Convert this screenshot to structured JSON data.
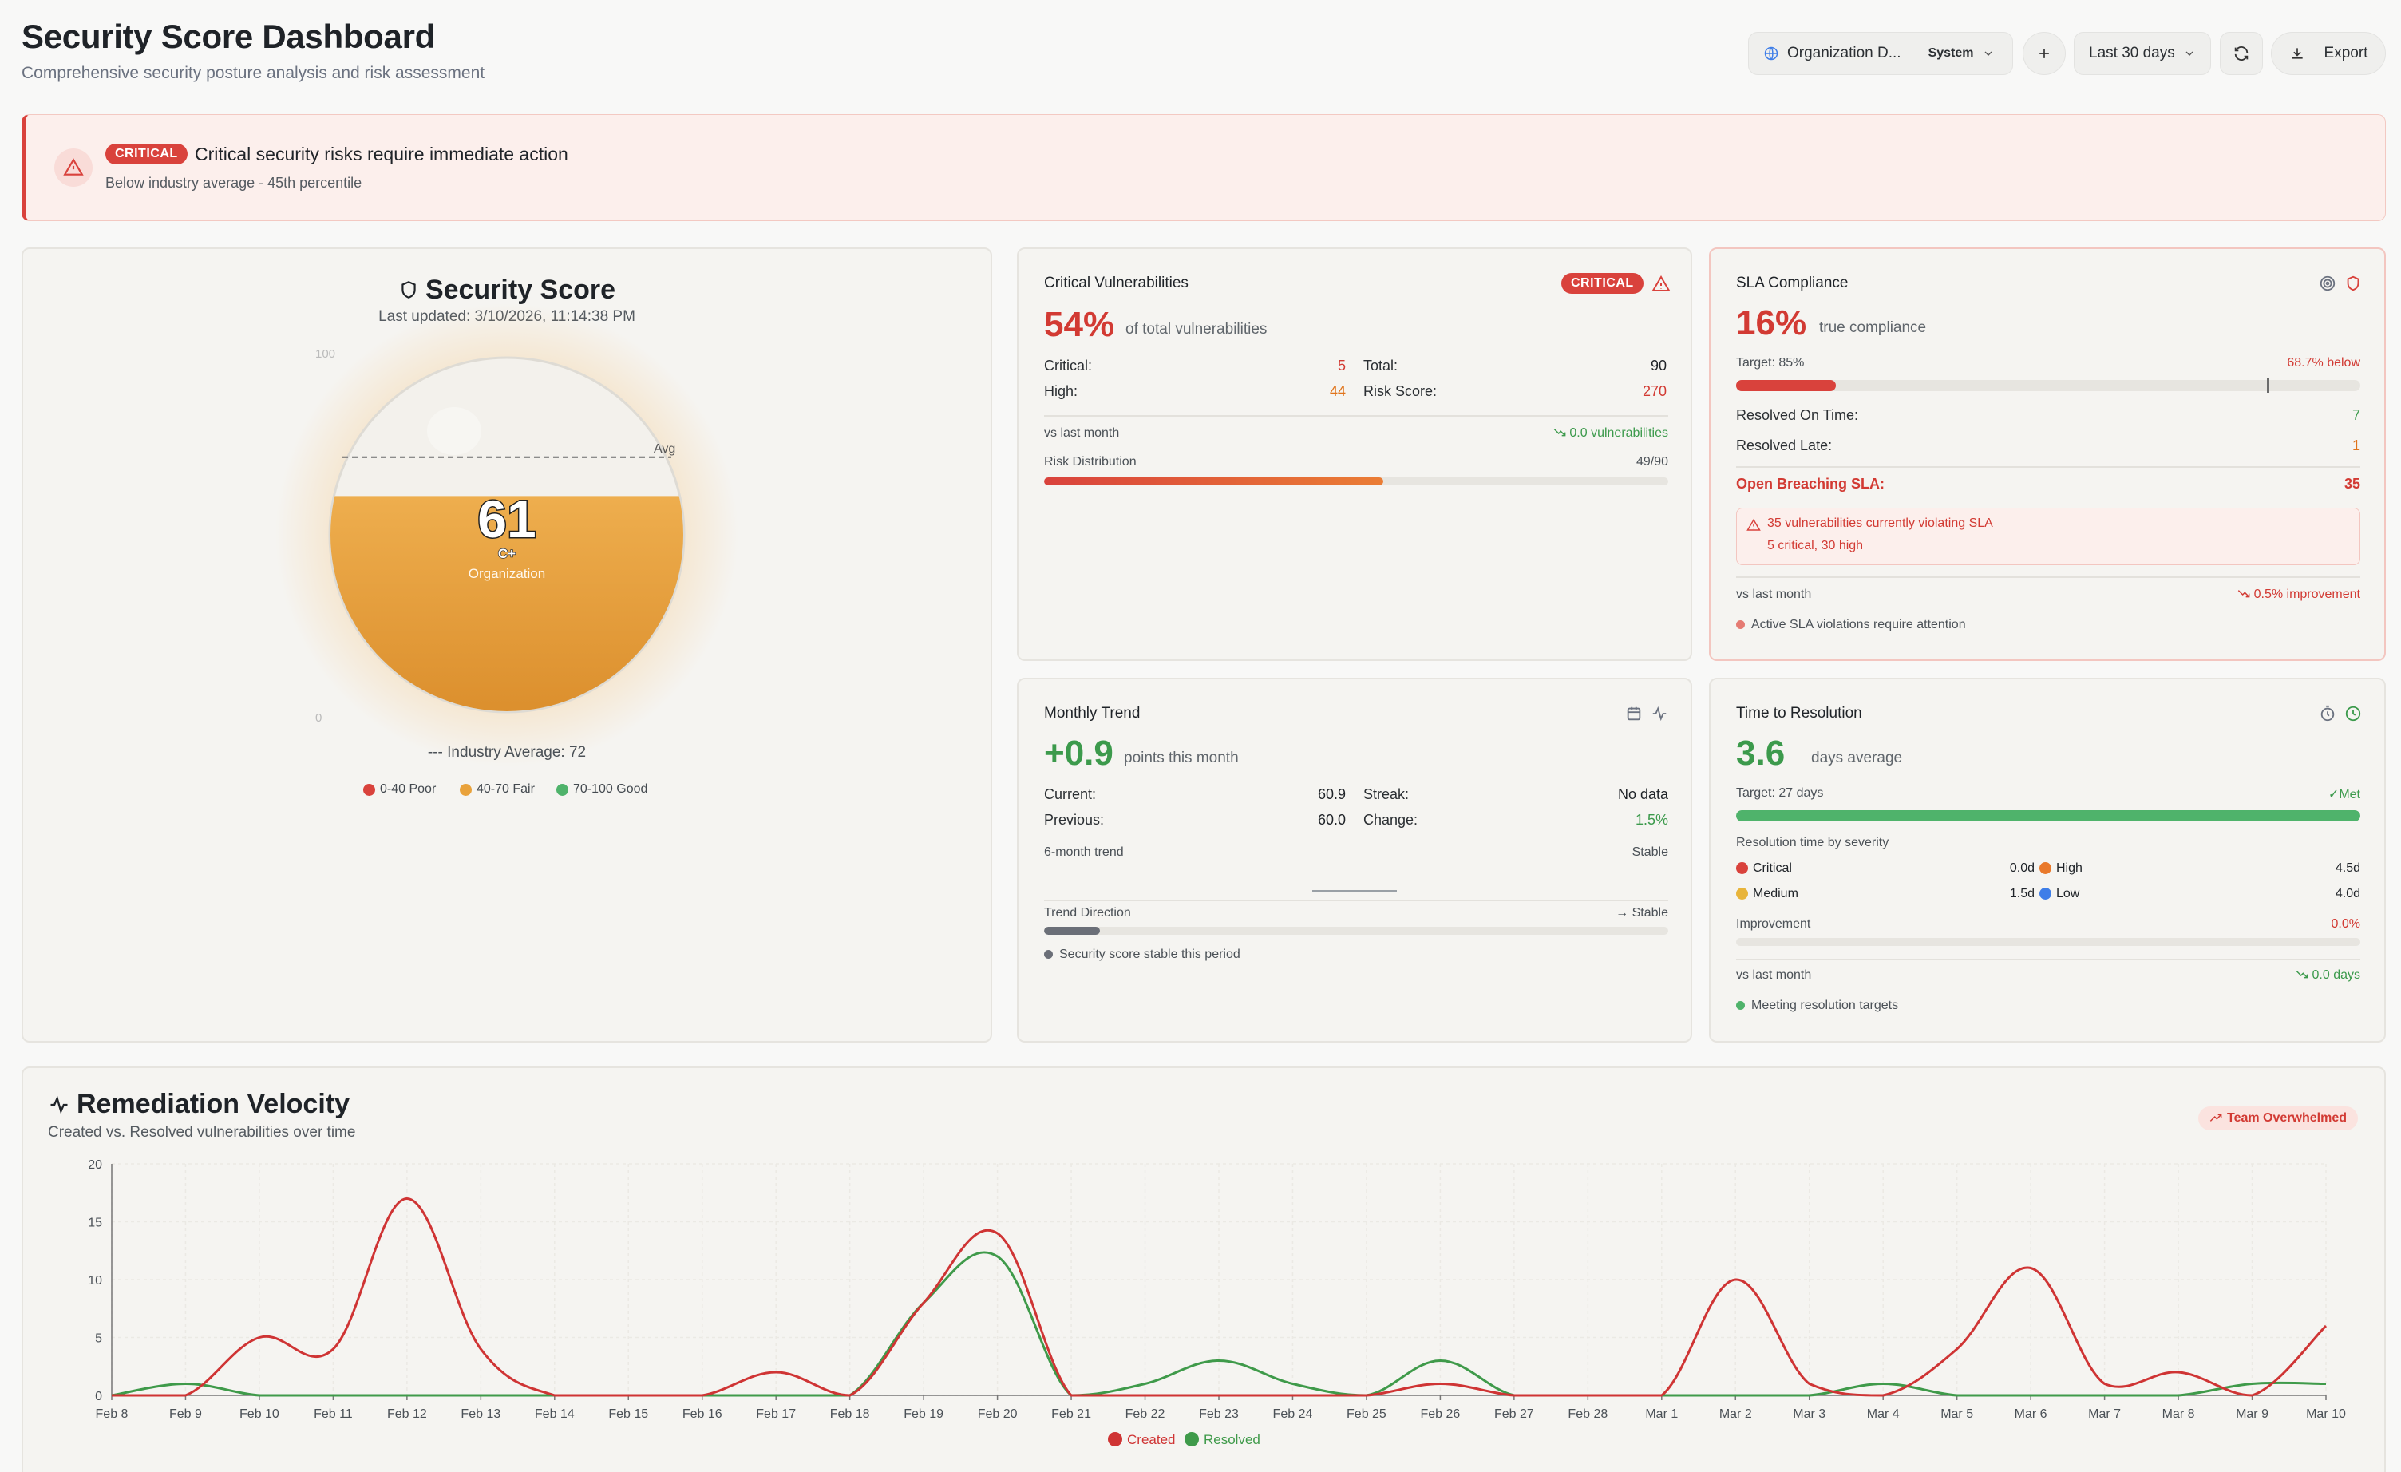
{
  "header": {
    "title": "Security Score Dashboard",
    "subtitle": "Comprehensive security posture analysis and risk assessment",
    "org_select": {
      "label": "Organization D...",
      "tag": "System"
    },
    "date_range": "Last 30 days",
    "export_label": "Export"
  },
  "alert": {
    "badge": "CRITICAL",
    "title": "Critical security risks require immediate action",
    "subtitle": "Below industry average - 45th percentile"
  },
  "security_score": {
    "title": "Security Score",
    "updated": "Last updated: 3/10/2026, 11:14:38 PM",
    "score": "61",
    "grade": "C+",
    "scope": "Organization",
    "scale_max": "100",
    "scale_min": "0",
    "avg_marker": "Avg",
    "industry_average_text": "--- Industry Average: 72",
    "legend": [
      {
        "label": "0-40 Poor",
        "color": "#d9423c"
      },
      {
        "label": "40-70 Fair",
        "color": "#e9a23b"
      },
      {
        "label": "70-100 Good",
        "color": "#4fb36b"
      }
    ],
    "fill_fraction": 0.61,
    "industry_average_fraction": 0.72
  },
  "critical_vulns": {
    "title": "Critical Vulnerabilities",
    "badge": "CRITICAL",
    "percent": "54%",
    "percent_label": "of total vulnerabilities",
    "critical_label": "Critical:",
    "critical_val": "5",
    "high_label": "High:",
    "high_val": "44",
    "total_label": "Total:",
    "total_val": "90",
    "risk_label": "Risk Score:",
    "risk_val": "270",
    "vs_label": "vs last month",
    "vs_val": "0.0 vulnerabilities",
    "dist_label": "Risk Distribution",
    "dist_val": "49/90",
    "dist_fraction": 0.544
  },
  "sla": {
    "title": "SLA Compliance",
    "percent": "16%",
    "percent_label": "true compliance",
    "target_label": "Target: 85%",
    "below_label": "68.7% below",
    "fill_fraction": 0.16,
    "target_fraction": 0.85,
    "on_time_label": "Resolved On Time:",
    "on_time_val": "7",
    "late_label": "Resolved Late:",
    "late_val": "1",
    "breach_label": "Open Breaching SLA:",
    "breach_val": "35",
    "warn_title": "35 vulnerabilities currently violating SLA",
    "warn_sub": "5 critical, 30 high",
    "vs_label": "vs last month",
    "vs_val": "0.5% improvement",
    "note": "Active SLA violations require attention"
  },
  "monthly_trend": {
    "title": "Monthly Trend",
    "value": "+0.9",
    "value_label": "points this month",
    "current_label": "Current:",
    "current_val": "60.9",
    "previous_label": "Previous:",
    "previous_val": "60.0",
    "streak_label": "Streak:",
    "streak_val": "No data",
    "change_label": "Change:",
    "change_val": "1.5%",
    "six_month_label": "6-month trend",
    "six_month_val": "Stable",
    "direction_label": "Trend Direction",
    "direction_val": "Stable",
    "direction_fraction": 0.09,
    "note": "Security score stable this period"
  },
  "time_to_resolution": {
    "title": "Time to Resolution",
    "value": "3.6",
    "value_label": "days average",
    "target_label": "Target: 27 days",
    "met_label": "Met",
    "fill_fraction": 1.0,
    "by_severity_label": "Resolution time by severity",
    "severity": [
      {
        "name": "Critical",
        "value": "0.0d",
        "color": "#d9423c"
      },
      {
        "name": "High",
        "value": "4.5d",
        "color": "#e9792b"
      },
      {
        "name": "Medium",
        "value": "1.5d",
        "color": "#e8b43a"
      },
      {
        "name": "Low",
        "value": "4.0d",
        "color": "#3f7ee8"
      }
    ],
    "improvement_label": "Improvement",
    "improvement_val": "0.0%",
    "vs_label": "vs last month",
    "vs_val": "0.0 days",
    "note": "Meeting resolution targets"
  },
  "velocity": {
    "title": "Remediation Velocity",
    "subtitle": "Created vs. Resolved vulnerabilities over time",
    "status_badge": "Team Overwhelmed"
  },
  "chart_data": {
    "type": "line",
    "categories": [
      "Feb 8",
      "Feb 9",
      "Feb 10",
      "Feb 11",
      "Feb 12",
      "Feb 13",
      "Feb 14",
      "Feb 15",
      "Feb 16",
      "Feb 17",
      "Feb 18",
      "Feb 19",
      "Feb 20",
      "Feb 21",
      "Feb 22",
      "Feb 23",
      "Feb 24",
      "Feb 25",
      "Feb 26",
      "Feb 27",
      "Feb 28",
      "Mar 1",
      "Mar 2",
      "Mar 3",
      "Mar 4",
      "Mar 5",
      "Mar 6",
      "Mar 7",
      "Mar 8",
      "Mar 9",
      "Mar 10"
    ],
    "series": [
      {
        "name": "Created",
        "color": "#cf3434",
        "values": [
          0,
          0,
          5,
          4,
          17,
          4,
          0,
          0,
          0,
          2,
          0,
          8,
          14,
          0,
          0,
          0,
          0,
          0,
          1,
          0,
          0,
          0,
          10,
          1,
          0,
          4,
          11,
          1,
          2,
          0,
          6
        ]
      },
      {
        "name": "Resolved",
        "color": "#3f9a4a",
        "values": [
          0,
          1,
          0,
          0,
          0,
          0,
          0,
          0,
          0,
          0,
          0,
          8,
          12,
          0,
          1,
          3,
          1,
          0,
          3,
          0,
          0,
          0,
          0,
          0,
          1,
          0,
          0,
          0,
          0,
          1,
          1
        ]
      }
    ],
    "y_ticks": [
      "0",
      "5",
      "10",
      "15",
      "20"
    ],
    "ylim": [
      0,
      20
    ],
    "grid": true,
    "legend": "bottom-center"
  }
}
